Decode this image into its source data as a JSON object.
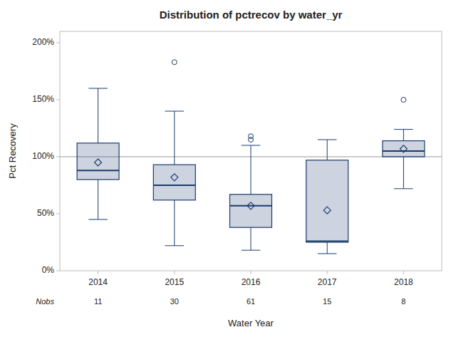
{
  "chart_data": {
    "type": "box",
    "title": "Distribution of pctrecov by water_yr",
    "x_label": "Water Year",
    "y_label": "Pct Recovery",
    "categories": [
      "2014",
      "2015",
      "2016",
      "2017",
      "2018"
    ],
    "boxes": [
      {
        "q1": 80,
        "median": 88,
        "q3": 112,
        "whis_low": 45,
        "whis_high": 160,
        "mean": 95,
        "outliers": []
      },
      {
        "q1": 62,
        "median": 75,
        "q3": 93,
        "whis_low": 22,
        "whis_high": 140,
        "mean": 82,
        "outliers": [
          183
        ]
      },
      {
        "q1": 38,
        "median": 57,
        "q3": 67,
        "whis_low": 18,
        "whis_high": 110,
        "mean": 57,
        "outliers": [
          115,
          118
        ]
      },
      {
        "q1": 25,
        "median": 26,
        "q3": 97,
        "whis_low": 15,
        "whis_high": 115,
        "mean": 53,
        "outliers": []
      },
      {
        "q1": 100,
        "median": 105,
        "q3": 114,
        "whis_low": 72,
        "whis_high": 124,
        "mean": 107,
        "outliers": [
          150
        ]
      }
    ],
    "nobs_label": "Nobs",
    "nobs": [
      11,
      30,
      61,
      15,
      8
    ],
    "reference_line": 100,
    "color": "#1a3a6e",
    "ylim": [
      0,
      210
    ],
    "yticks": [
      {
        "value": 0,
        "label": "0%"
      },
      {
        "value": 50,
        "label": "50%"
      },
      {
        "value": 100,
        "label": "100%"
      },
      {
        "value": 150,
        "label": "150%"
      },
      {
        "value": 200,
        "label": "200%"
      }
    ],
    "grid": false
  }
}
